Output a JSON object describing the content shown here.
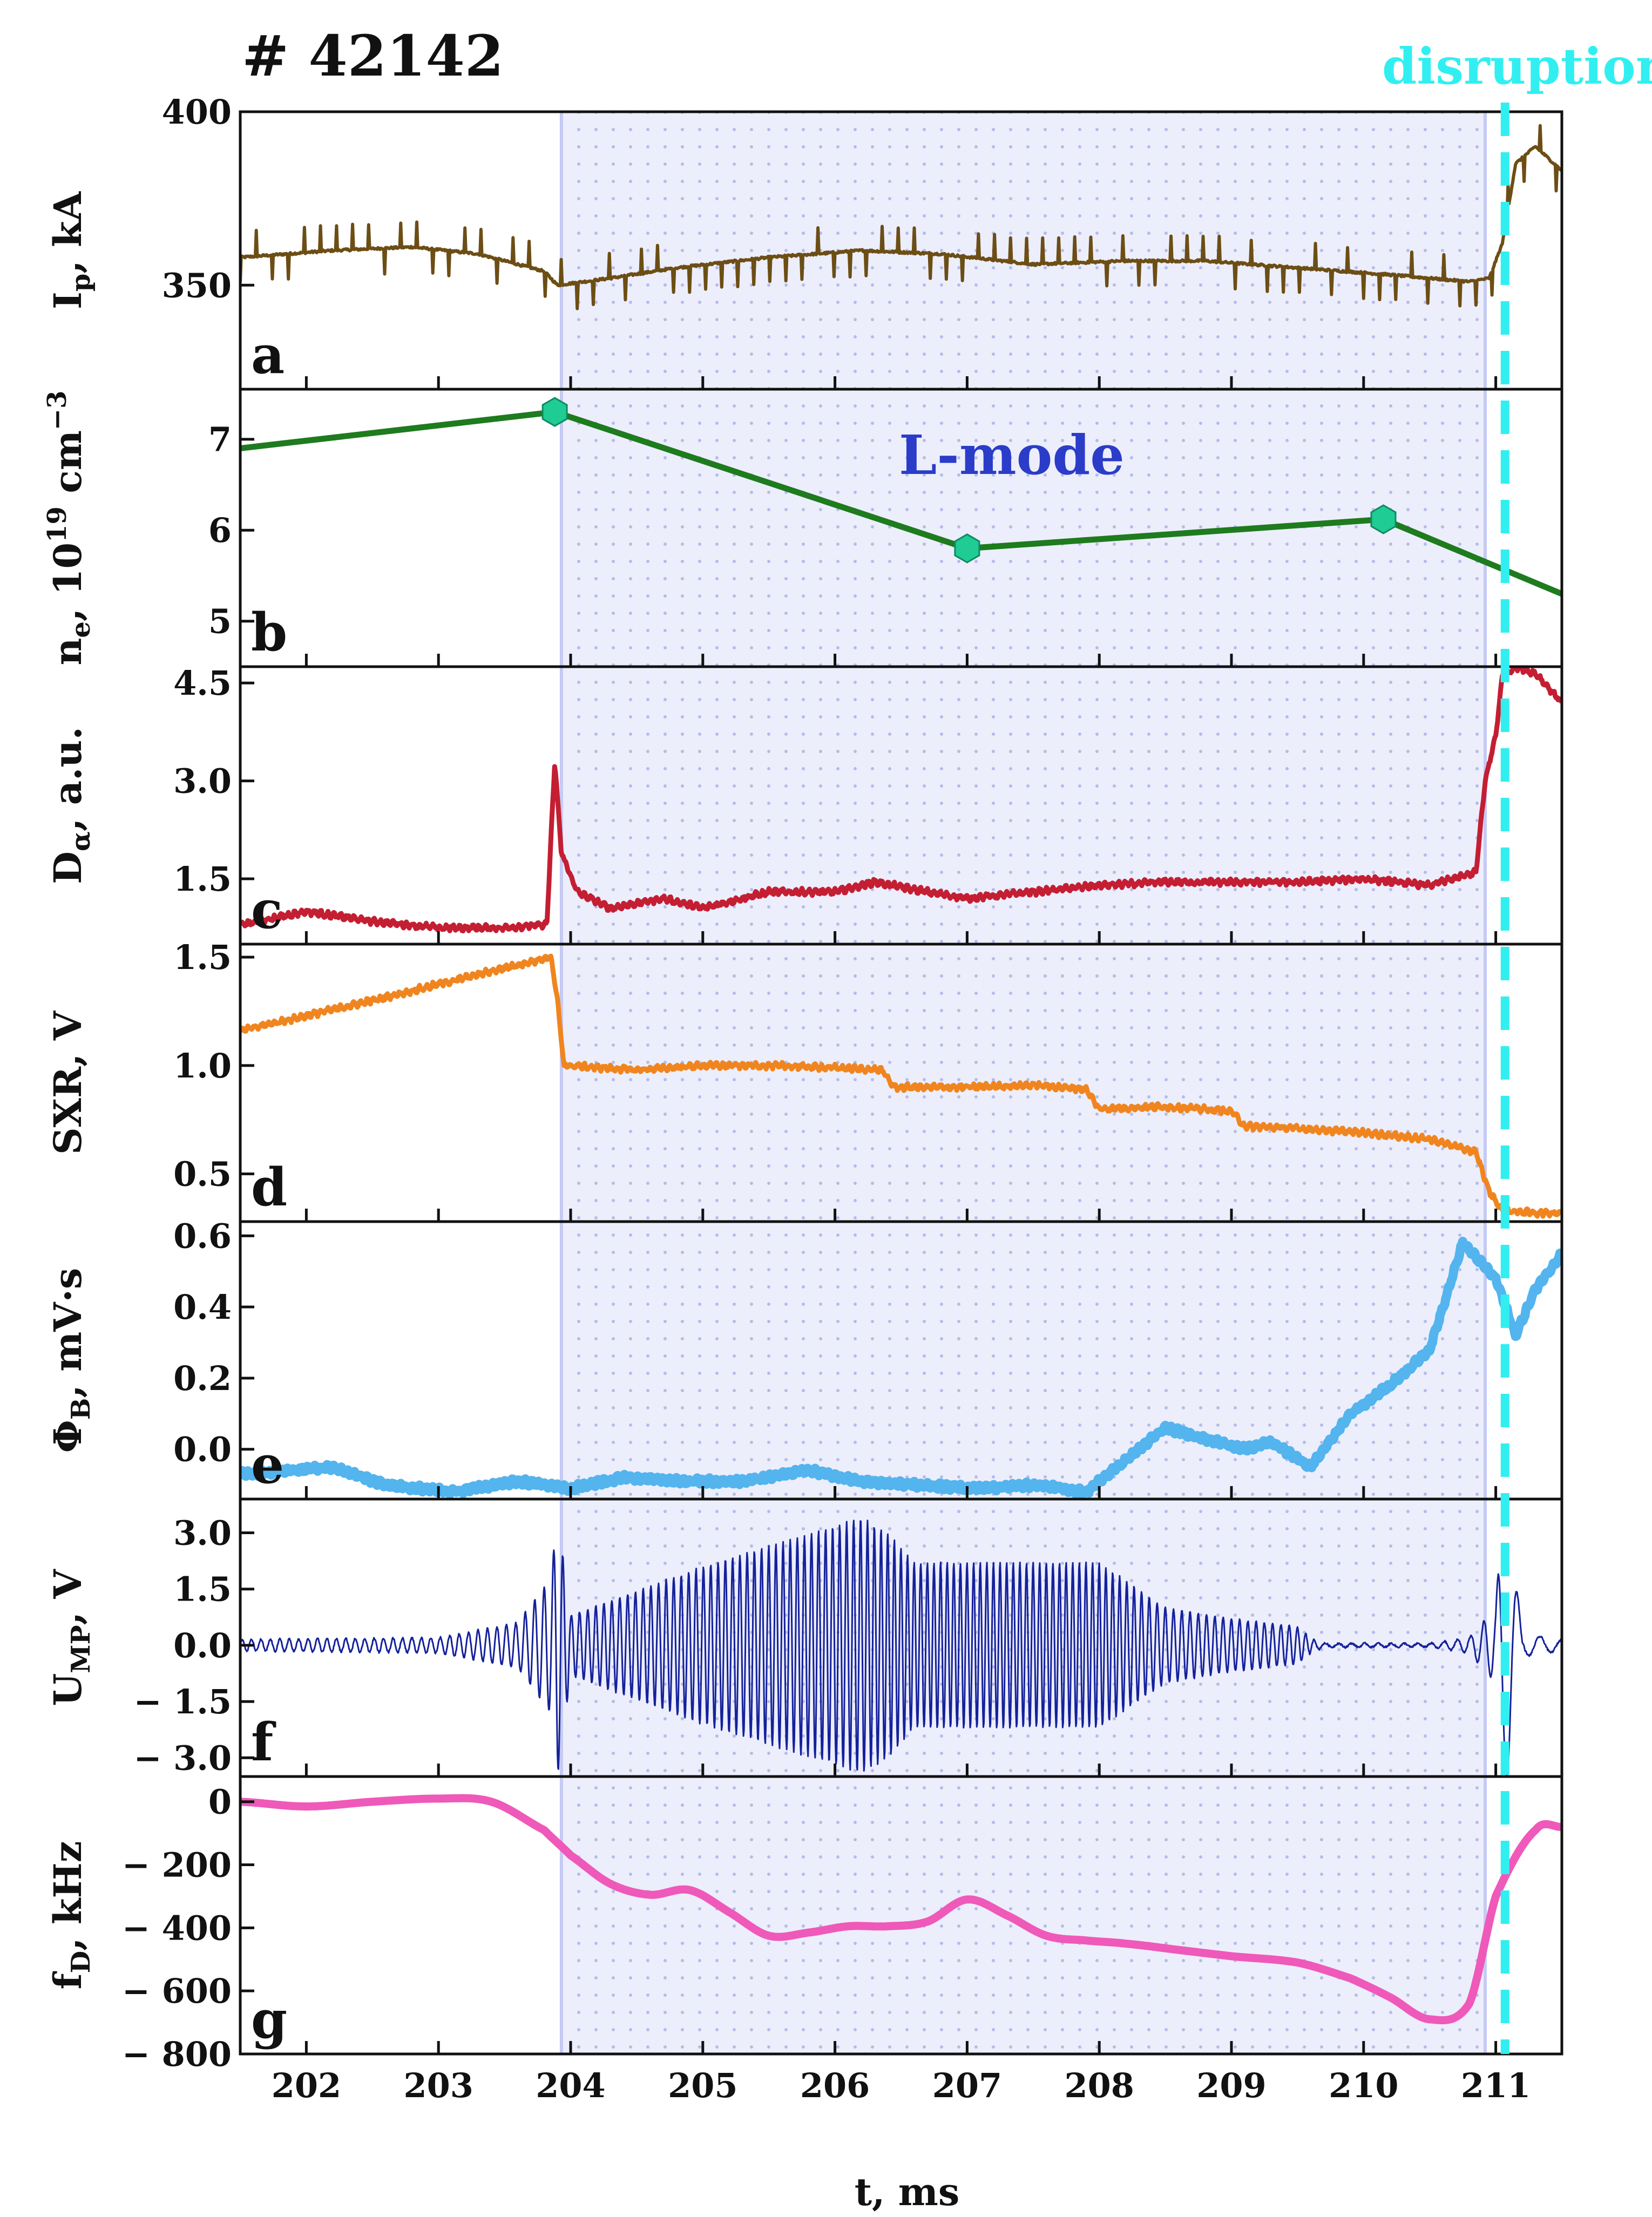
{
  "shot_title": "# 42142",
  "event_label": "disruption",
  "region_label": "L-mode",
  "xlabel": "t, ms",
  "colors": {
    "frame": "#111111",
    "shade_fill": "#eceefc",
    "shade_dots": "#b4bce8",
    "shade_edge": "#c5caf4",
    "disruption": "#31eff0",
    "region_label": "#2a3cc8"
  },
  "chart_data": {
    "type": "line",
    "title": "# 42142",
    "shared_x": {
      "label": "t, ms",
      "range": [
        201.5,
        211.5
      ],
      "ticks": [
        202,
        203,
        204,
        205,
        206,
        207,
        208,
        209,
        210,
        211
      ],
      "tick_labels": [
        "202",
        "203",
        "204",
        "205",
        "206",
        "207",
        "208",
        "209",
        "210",
        "211"
      ]
    },
    "lmode_interval": [
      203.93,
      210.92
    ],
    "disruption_time": 211.07,
    "panels": [
      {
        "letter": "a",
        "ylabel_main": "I",
        "ylabel_sub": "p",
        "ylabel_tail": ", kA",
        "ylim": [
          320,
          400
        ],
        "yticks": [
          350,
          400
        ],
        "ytick_labels": [
          "350",
          "400"
        ],
        "series": [
          {
            "name": "Ip",
            "color": "#6c4e15",
            "line_width": 6,
            "spiky": true,
            "x": [
              201.5,
              202.2,
              202.8,
              203.3,
              203.8,
              203.9,
              204.3,
              204.8,
              205.5,
              206.2,
              206.8,
              207.5,
              208.2,
              208.8,
              209.5,
              210.2,
              210.8,
              210.95,
              211.05,
              211.15,
              211.3,
              211.5
            ],
            "y": [
              358,
              360,
              361,
              359,
              354,
              350,
              352,
              355,
              358,
              360,
              359,
              356,
              357,
              357,
              355,
              353,
              351,
              352,
              362,
              385,
              390,
              383
            ]
          }
        ]
      },
      {
        "letter": "b",
        "ylabel_main": "n",
        "ylabel_sub": "e",
        "ylabel_tail": ", 10",
        "ylabel_sup": "19",
        "ylabel_tail2": " cm",
        "ylabel_sup2": "−3",
        "ylim": [
          4.5,
          7.55
        ],
        "yticks": [
          5,
          6,
          7
        ],
        "ytick_labels": [
          "5",
          "6",
          "7"
        ],
        "series": [
          {
            "name": "ne",
            "color": "#1e7b1e",
            "line_width": 11,
            "markers": "hexagon",
            "marker_color": "#1fcc93",
            "x": [
              201.5,
              203.88,
              207.0,
              210.15,
              211.5
            ],
            "y": [
              6.9,
              7.3,
              5.8,
              6.12,
              5.3
            ],
            "marker_x": [
              203.88,
              207.0,
              210.15
            ],
            "marker_y": [
              7.3,
              5.8,
              6.12
            ]
          }
        ]
      },
      {
        "letter": "c",
        "ylabel_main": "D",
        "ylabel_sub": "α",
        "ylabel_tail": ", a.u.",
        "ylim": [
          0.5,
          4.75
        ],
        "yticks": [
          1.5,
          3.0,
          4.5
        ],
        "ytick_labels": [
          "1.5",
          "3.0",
          "4.5"
        ],
        "series": [
          {
            "name": "Dalpha",
            "color": "#c41e33",
            "line_width": 9,
            "noisy": true,
            "x": [
              201.5,
              202.0,
              202.5,
              203.0,
              203.5,
              203.82,
              203.88,
              203.93,
              204.05,
              204.3,
              204.7,
              205.0,
              205.5,
              206.0,
              206.3,
              206.7,
              207.0,
              207.5,
              208.0,
              208.5,
              209.0,
              209.5,
              210.0,
              210.5,
              210.85,
              210.92,
              211.0,
              211.05,
              211.15,
              211.3,
              211.5
            ],
            "y": [
              0.8,
              1.0,
              0.85,
              0.75,
              0.75,
              0.8,
              3.3,
              1.9,
              1.3,
              1.05,
              1.2,
              1.05,
              1.3,
              1.3,
              1.45,
              1.3,
              1.2,
              1.3,
              1.4,
              1.45,
              1.45,
              1.45,
              1.5,
              1.4,
              1.6,
              3.0,
              3.7,
              4.6,
              4.75,
              4.65,
              4.2
            ]
          }
        ]
      },
      {
        "letter": "d",
        "ylabel_main": "SXR, V",
        "ylim": [
          0.28,
          1.56
        ],
        "yticks": [
          0.5,
          1.0,
          1.5
        ],
        "ytick_labels": [
          "0.5",
          "1.0",
          "1.5"
        ],
        "series": [
          {
            "name": "SXR",
            "color": "#f0851f",
            "line_width": 9,
            "noisy": true,
            "x": [
              201.5,
              202.5,
              203.5,
              203.85,
              203.9,
              203.95,
              204.5,
              205.0,
              205.5,
              206.0,
              206.35,
              206.45,
              207.0,
              207.5,
              207.9,
              208.0,
              208.5,
              209.0,
              209.1,
              209.5,
              210.0,
              210.5,
              210.85,
              210.95,
              211.05,
              211.3,
              211.5
            ],
            "y": [
              1.16,
              1.3,
              1.45,
              1.5,
              1.3,
              1.0,
              0.98,
              1.0,
              1.0,
              0.99,
              0.98,
              0.9,
              0.9,
              0.91,
              0.89,
              0.8,
              0.81,
              0.79,
              0.72,
              0.71,
              0.69,
              0.66,
              0.6,
              0.42,
              0.33,
              0.32,
              0.32
            ]
          }
        ]
      },
      {
        "letter": "e",
        "ylabel_main": "Φ",
        "ylabel_sub": "B",
        "ylabel_tail": ", mV·s",
        "ylim": [
          -0.14,
          0.64
        ],
        "yticks": [
          0.0,
          0.2,
          0.4,
          0.6
        ],
        "ytick_labels": [
          "0.0",
          "0.2",
          "0.4",
          "0.6"
        ],
        "series": [
          {
            "name": "PhiB",
            "color": "#53b4ee",
            "line_width": 17,
            "noisy": true,
            "x": [
              201.5,
              202.2,
              202.6,
              203.1,
              203.6,
              204.0,
              204.4,
              204.9,
              205.3,
              205.8,
              206.2,
              206.6,
              207.1,
              207.5,
              207.9,
              208.2,
              208.5,
              208.8,
              209.1,
              209.3,
              209.6,
              209.9,
              210.2,
              210.5,
              210.75,
              211.0,
              211.15,
              211.3,
              211.5
            ],
            "y": [
              -0.07,
              -0.05,
              -0.1,
              -0.12,
              -0.09,
              -0.11,
              -0.08,
              -0.09,
              -0.09,
              -0.06,
              -0.09,
              -0.1,
              -0.11,
              -0.1,
              -0.12,
              -0.03,
              0.06,
              0.03,
              0.0,
              0.02,
              -0.05,
              0.1,
              0.18,
              0.28,
              0.58,
              0.48,
              0.32,
              0.45,
              0.55
            ]
          }
        ]
      },
      {
        "letter": "f",
        "ylabel_main": "U",
        "ylabel_sub": "MP",
        "ylabel_tail": ", V",
        "ylim": [
          -3.5,
          3.9
        ],
        "yticks": [
          -3.0,
          -1.5,
          0.0,
          1.5,
          3.0
        ],
        "ytick_labels": [
          "− 3.0",
          "− 1.5",
          "0.0",
          "1.5",
          "3.0"
        ],
        "series": [
          {
            "name": "UMP",
            "color": "#15219a",
            "line_width": 3,
            "oscillating": true,
            "x": [
              201.5,
              203.0,
              203.6,
              203.85,
              203.9,
              204.0,
              205.0,
              206.2,
              206.4,
              206.6,
              207.5,
              208.0,
              208.5,
              209.0,
              209.5,
              209.6,
              209.7,
              210.5,
              210.8,
              211.0,
              211.05,
              211.1,
              211.2,
              211.5
            ],
            "envelope": [
              0.15,
              0.2,
              0.6,
              1.8,
              3.5,
              0.8,
              2.1,
              3.4,
              3.0,
              2.2,
              2.2,
              2.2,
              1.0,
              0.7,
              0.5,
              0.2,
              0.05,
              0.05,
              0.2,
              1.0,
              3.8,
              3.3,
              0.3,
              0.15
            ],
            "frequency_khz": [
              14,
              14,
              14,
              14,
              14,
              16,
              18,
              19,
              20,
              20,
              20,
              20,
              16,
              16,
              16,
              16,
              10,
              10,
              10,
              10,
              6,
              6,
              6,
              6
            ]
          }
        ]
      },
      {
        "letter": "g",
        "ylabel_main": "f",
        "ylabel_sub": "D",
        "ylabel_tail": ", kHz",
        "ylim": [
          -800,
          80
        ],
        "yticks": [
          -800,
          -600,
          -400,
          -200,
          0
        ],
        "ytick_labels": [
          "− 800",
          "− 600",
          "− 400",
          "− 200",
          "0"
        ],
        "series": [
          {
            "name": "fD",
            "color": "#ef59b9",
            "line_width": 15,
            "smooth": true,
            "x": [
              201.5,
              202.0,
              202.5,
              203.0,
              203.4,
              203.8,
              204.0,
              204.3,
              204.6,
              204.9,
              205.2,
              205.5,
              205.8,
              206.1,
              206.4,
              206.7,
              207.0,
              207.3,
              207.6,
              207.9,
              208.2,
              208.6,
              209.0,
              209.5,
              209.9,
              210.2,
              210.5,
              210.8,
              211.0,
              211.3,
              211.5
            ],
            "y": [
              0,
              -15,
              0,
              10,
              0,
              -90,
              -170,
              -260,
              -295,
              -280,
              -350,
              -425,
              -415,
              -395,
              -395,
              -380,
              -310,
              -360,
              -425,
              -440,
              -450,
              -470,
              -490,
              -510,
              -560,
              -620,
              -690,
              -640,
              -300,
              -90,
              -80
            ]
          }
        ]
      }
    ]
  }
}
